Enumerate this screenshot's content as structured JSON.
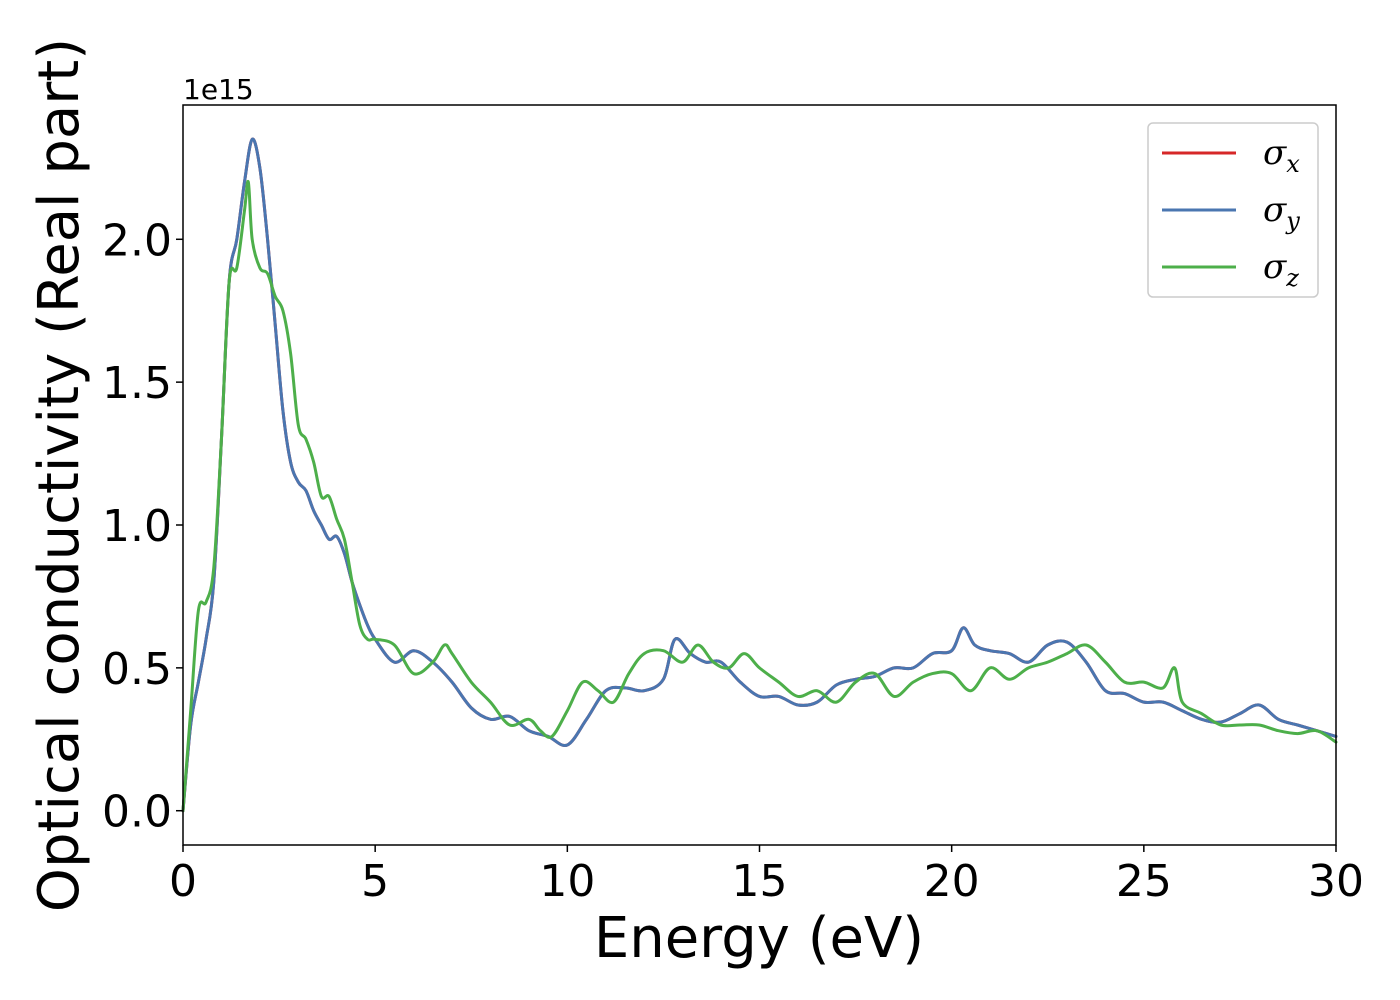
{
  "chart_data": {
    "type": "line",
    "title": "",
    "xlabel": "Energy (eV)",
    "ylabel": "Optical conductivity (Real part)",
    "y_offset_label": "1e15",
    "y_scale": 1000000000000000.0,
    "xlim": [
      0,
      30
    ],
    "ylim": [
      -0.12,
      2.47
    ],
    "x_ticks": [
      0,
      5,
      10,
      15,
      20,
      25,
      30
    ],
    "x_tick_labels": [
      "0",
      "5",
      "10",
      "15",
      "20",
      "25",
      "30"
    ],
    "y_ticks": [
      0.0,
      0.5,
      1.0,
      1.5,
      2.0
    ],
    "y_tick_labels": [
      "0.0",
      "0.5",
      "1.0",
      "1.5",
      "2.0"
    ],
    "grid": false,
    "legend_position": "top-right",
    "legend": [
      {
        "symbol": "σ",
        "sub": "x",
        "color": "#d62728"
      },
      {
        "symbol": "σ",
        "sub": "y",
        "color": "#4a76b0"
      },
      {
        "symbol": "σ",
        "sub": "z",
        "color": "#4daf4a"
      }
    ],
    "series": [
      {
        "name": "σx",
        "color": "#d62728",
        "x": [
          0,
          0.2,
          0.4,
          0.6,
          0.8,
          1.0,
          1.2,
          1.4,
          1.6,
          1.8,
          2.0,
          2.2,
          2.4,
          2.6,
          2.8,
          3.0,
          3.2,
          3.4,
          3.6,
          3.8,
          4.0,
          4.2,
          4.4,
          4.6,
          4.8,
          5.0,
          5.5,
          6.0,
          6.5,
          7.0,
          7.5,
          8.0,
          8.5,
          9.0,
          9.5,
          10.0,
          10.5,
          11.0,
          11.5,
          12.0,
          12.5,
          12.8,
          13.2,
          13.6,
          14.0,
          14.5,
          15.0,
          15.5,
          16.0,
          16.5,
          17.0,
          17.5,
          18.0,
          18.5,
          19.0,
          19.5,
          20.0,
          20.3,
          20.6,
          21.0,
          21.5,
          22.0,
          22.5,
          23.0,
          23.5,
          24.0,
          24.5,
          25.0,
          25.5,
          26.0,
          26.5,
          27.0,
          27.5,
          28.0,
          28.5,
          29.0,
          29.5,
          30.0
        ],
        "y": [
          0.0,
          0.3,
          0.45,
          0.6,
          0.8,
          1.3,
          1.85,
          2.0,
          2.2,
          2.35,
          2.25,
          2.0,
          1.7,
          1.4,
          1.22,
          1.15,
          1.12,
          1.05,
          1.0,
          0.95,
          0.96,
          0.9,
          0.8,
          0.72,
          0.65,
          0.6,
          0.52,
          0.56,
          0.52,
          0.45,
          0.36,
          0.32,
          0.33,
          0.28,
          0.26,
          0.23,
          0.32,
          0.42,
          0.43,
          0.42,
          0.46,
          0.6,
          0.55,
          0.52,
          0.52,
          0.45,
          0.4,
          0.4,
          0.37,
          0.38,
          0.44,
          0.46,
          0.47,
          0.5,
          0.5,
          0.55,
          0.56,
          0.64,
          0.58,
          0.56,
          0.55,
          0.52,
          0.58,
          0.59,
          0.52,
          0.42,
          0.41,
          0.38,
          0.38,
          0.35,
          0.32,
          0.31,
          0.34,
          0.37,
          0.32,
          0.3,
          0.28,
          0.26
        ]
      },
      {
        "name": "σy",
        "color": "#4a76b0",
        "x": [
          0,
          0.2,
          0.4,
          0.6,
          0.8,
          1.0,
          1.2,
          1.4,
          1.6,
          1.8,
          2.0,
          2.2,
          2.4,
          2.6,
          2.8,
          3.0,
          3.2,
          3.4,
          3.6,
          3.8,
          4.0,
          4.2,
          4.4,
          4.6,
          4.8,
          5.0,
          5.5,
          6.0,
          6.5,
          7.0,
          7.5,
          8.0,
          8.5,
          9.0,
          9.5,
          10.0,
          10.5,
          11.0,
          11.5,
          12.0,
          12.5,
          12.8,
          13.2,
          13.6,
          14.0,
          14.5,
          15.0,
          15.5,
          16.0,
          16.5,
          17.0,
          17.5,
          18.0,
          18.5,
          19.0,
          19.5,
          20.0,
          20.3,
          20.6,
          21.0,
          21.5,
          22.0,
          22.5,
          23.0,
          23.5,
          24.0,
          24.5,
          25.0,
          25.5,
          26.0,
          26.5,
          27.0,
          27.5,
          28.0,
          28.5,
          29.0,
          29.5,
          30.0
        ],
        "y": [
          0.0,
          0.3,
          0.45,
          0.6,
          0.8,
          1.3,
          1.85,
          2.0,
          2.2,
          2.35,
          2.25,
          2.0,
          1.7,
          1.4,
          1.22,
          1.15,
          1.12,
          1.05,
          1.0,
          0.95,
          0.96,
          0.9,
          0.8,
          0.72,
          0.65,
          0.6,
          0.52,
          0.56,
          0.52,
          0.45,
          0.36,
          0.32,
          0.33,
          0.28,
          0.26,
          0.23,
          0.32,
          0.42,
          0.43,
          0.42,
          0.46,
          0.6,
          0.55,
          0.52,
          0.52,
          0.45,
          0.4,
          0.4,
          0.37,
          0.38,
          0.44,
          0.46,
          0.47,
          0.5,
          0.5,
          0.55,
          0.56,
          0.64,
          0.58,
          0.56,
          0.55,
          0.52,
          0.58,
          0.59,
          0.52,
          0.42,
          0.41,
          0.38,
          0.38,
          0.35,
          0.32,
          0.31,
          0.34,
          0.37,
          0.32,
          0.3,
          0.28,
          0.26
        ]
      },
      {
        "name": "σz",
        "color": "#4daf4a",
        "x": [
          0,
          0.2,
          0.4,
          0.6,
          0.8,
          1.0,
          1.2,
          1.4,
          1.6,
          1.7,
          1.8,
          2.0,
          2.2,
          2.4,
          2.6,
          2.8,
          3.0,
          3.2,
          3.4,
          3.6,
          3.8,
          4.0,
          4.2,
          4.4,
          4.6,
          4.8,
          5.0,
          5.5,
          6.0,
          6.5,
          6.8,
          7.0,
          7.5,
          8.0,
          8.5,
          9.0,
          9.3,
          9.6,
          10.0,
          10.4,
          10.8,
          11.2,
          11.6,
          12.0,
          12.5,
          13.0,
          13.4,
          13.8,
          14.2,
          14.6,
          15.0,
          15.5,
          16.0,
          16.5,
          17.0,
          17.5,
          18.0,
          18.5,
          19.0,
          19.5,
          20.0,
          20.5,
          21.0,
          21.5,
          22.0,
          22.5,
          23.0,
          23.5,
          24.0,
          24.5,
          25.0,
          25.5,
          25.8,
          26.0,
          26.5,
          27.0,
          27.5,
          28.0,
          28.5,
          29.0,
          29.5,
          30.0
        ],
        "y": [
          0.0,
          0.35,
          0.7,
          0.73,
          0.85,
          1.3,
          1.85,
          1.9,
          2.1,
          2.2,
          2.0,
          1.9,
          1.88,
          1.8,
          1.75,
          1.6,
          1.35,
          1.3,
          1.22,
          1.1,
          1.1,
          1.02,
          0.95,
          0.8,
          0.65,
          0.6,
          0.6,
          0.58,
          0.48,
          0.52,
          0.58,
          0.55,
          0.45,
          0.38,
          0.3,
          0.32,
          0.28,
          0.26,
          0.35,
          0.45,
          0.42,
          0.38,
          0.48,
          0.55,
          0.56,
          0.52,
          0.58,
          0.52,
          0.5,
          0.55,
          0.5,
          0.45,
          0.4,
          0.42,
          0.38,
          0.45,
          0.48,
          0.4,
          0.45,
          0.48,
          0.48,
          0.42,
          0.5,
          0.46,
          0.5,
          0.52,
          0.55,
          0.58,
          0.52,
          0.45,
          0.45,
          0.43,
          0.5,
          0.38,
          0.34,
          0.3,
          0.3,
          0.3,
          0.28,
          0.27,
          0.28,
          0.24
        ]
      }
    ]
  }
}
